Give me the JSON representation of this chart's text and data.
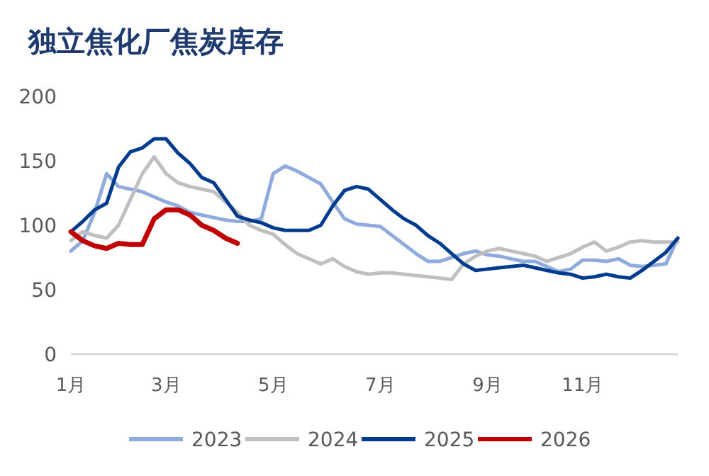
{
  "chart_data": {
    "type": "line",
    "title": "独立焦化厂焦炭库存",
    "categories": [
      "1月",
      null,
      null,
      null,
      null,
      null,
      null,
      null,
      "3月",
      null,
      null,
      null,
      null,
      null,
      null,
      null,
      null,
      "5月",
      null,
      null,
      null,
      null,
      null,
      null,
      null,
      null,
      "7月",
      null,
      null,
      null,
      null,
      null,
      null,
      null,
      null,
      "9月",
      null,
      null,
      null,
      null,
      null,
      null,
      null,
      "11月",
      null,
      null,
      null,
      null,
      null,
      null,
      null,
      null
    ],
    "series": [
      {
        "name": "2023",
        "color": "#8faadc",
        "values": [
          80,
          88,
          110,
          140,
          130,
          128,
          126,
          122,
          118,
          115,
          110,
          108,
          106,
          104,
          103,
          103,
          105,
          140,
          146,
          142,
          137,
          132,
          118,
          105,
          101,
          100,
          99,
          92,
          85,
          78,
          72,
          72,
          75,
          78,
          80,
          77,
          76,
          74,
          72,
          72,
          68,
          64,
          66,
          73,
          73,
          72,
          74,
          69,
          68,
          69,
          70,
          90
        ]
      },
      {
        "name": "2024",
        "color": "#bfbfbf",
        "values": [
          88,
          95,
          92,
          90,
          100,
          120,
          140,
          153,
          140,
          133,
          130,
          128,
          126,
          118,
          110,
          100,
          96,
          93,
          85,
          78,
          74,
          70,
          74,
          68,
          64,
          62,
          63,
          63,
          62,
          61,
          60,
          59,
          58,
          70,
          76,
          80,
          82,
          80,
          78,
          76,
          72,
          75,
          78,
          83,
          87,
          80,
          83,
          87,
          88,
          87,
          87,
          87
        ]
      },
      {
        "name": "2025",
        "color": "#003b8e",
        "values": [
          95,
          103,
          112,
          117,
          145,
          157,
          160,
          167,
          167,
          156,
          148,
          137,
          133,
          120,
          107,
          104,
          102,
          98,
          96,
          96,
          96,
          100,
          115,
          127,
          130,
          128,
          120,
          112,
          105,
          100,
          92,
          86,
          78,
          70,
          65,
          66,
          67,
          68,
          69,
          67,
          65,
          63,
          62,
          59,
          60,
          62,
          60,
          59,
          65,
          72,
          79,
          90
        ]
      },
      {
        "name": "2026",
        "color": "#c00000",
        "values": [
          95,
          88,
          84,
          82,
          86,
          85,
          85,
          105,
          112,
          112,
          108,
          100,
          96,
          90,
          86,
          null,
          null,
          null,
          null,
          null,
          null,
          null,
          null,
          null,
          null,
          null,
          null,
          null,
          null,
          null,
          null,
          null,
          null,
          null,
          null,
          null,
          null,
          null,
          null,
          null,
          null,
          null,
          null,
          null,
          null,
          null,
          null,
          null,
          null,
          null,
          null,
          null
        ]
      }
    ],
    "ylim": [
      0,
      200
    ],
    "yticks": [
      0,
      50,
      100,
      150,
      200
    ],
    "grid": false,
    "legend": "bottom",
    "marker": "none",
    "line_style": "solid"
  }
}
